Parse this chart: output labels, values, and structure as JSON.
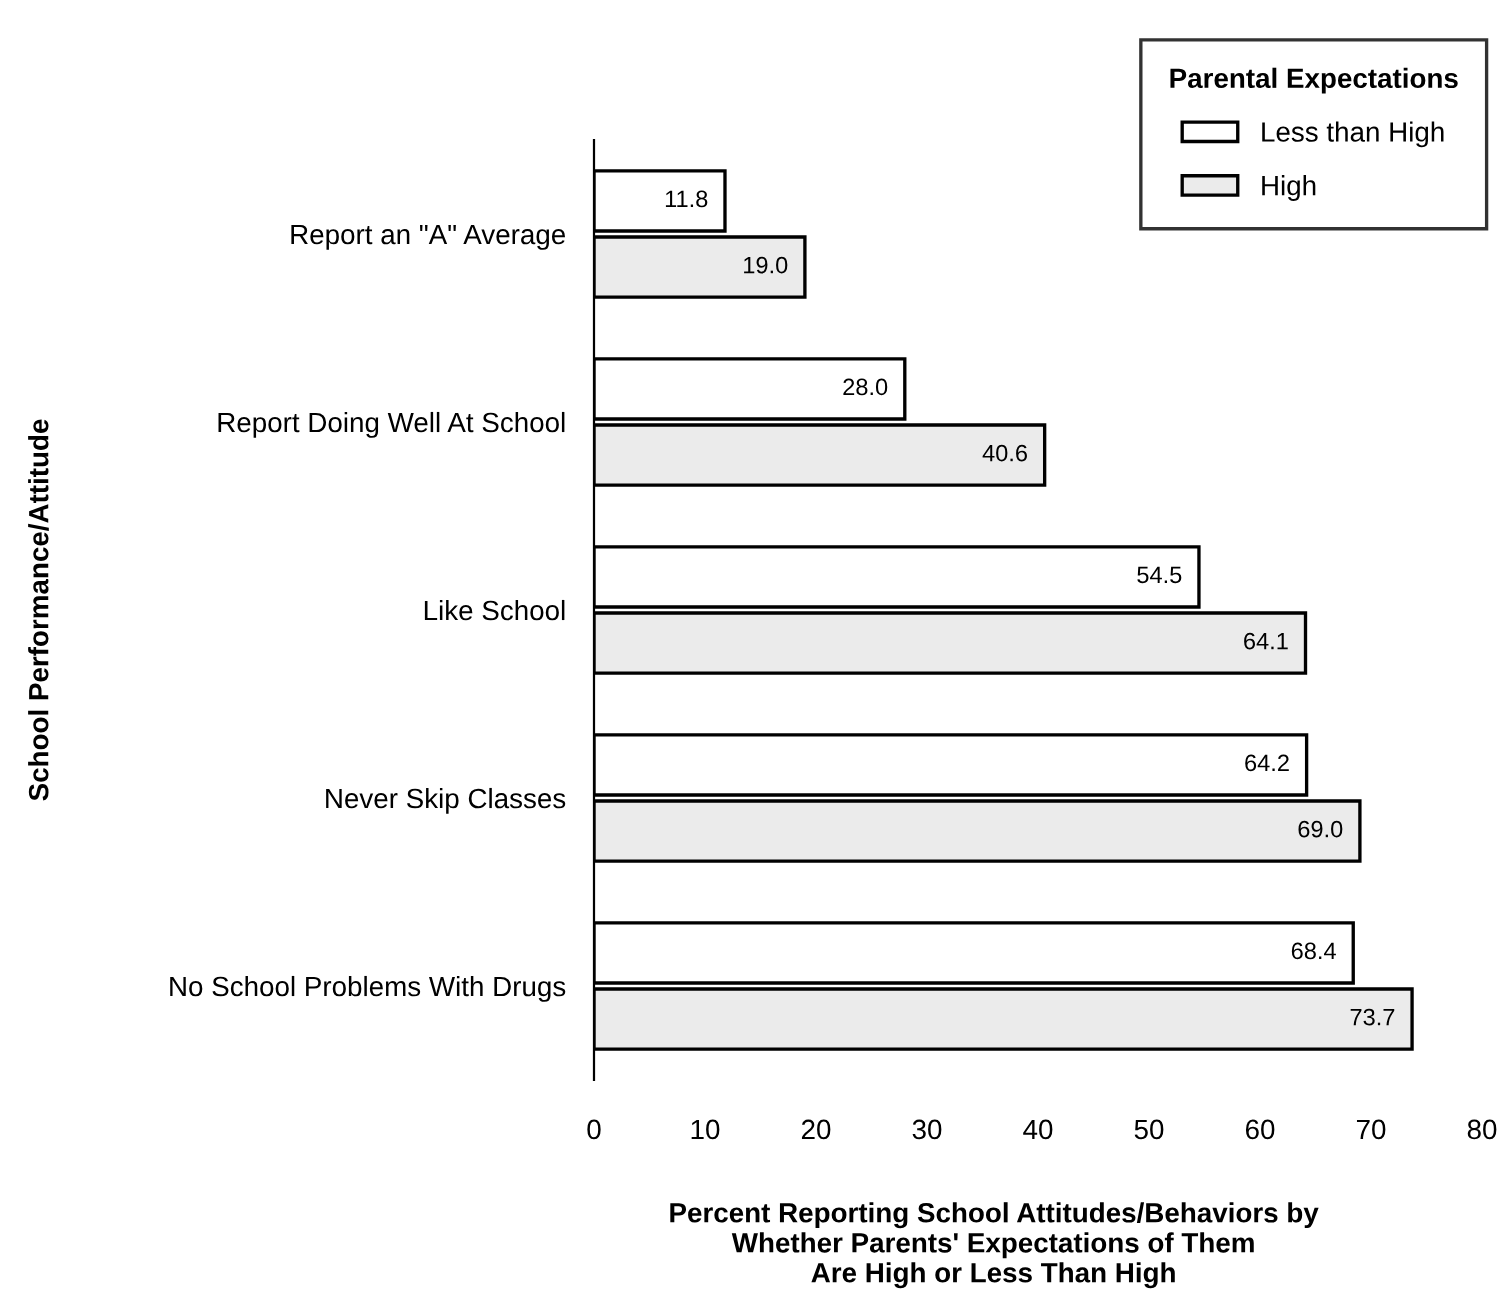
{
  "chart_data": {
    "type": "bar",
    "orientation": "horizontal",
    "title": null,
    "xlabel": "Percent Reporting School Attitudes/Behaviors by\nWhether Parents' Expectations of Them\nAre High or Less Than High",
    "ylabel": "School Performance/Attitude",
    "legend_title": "Parental Expectations",
    "categories": [
      "Report an \"A\" Average",
      "Report Doing Well At School",
      "Like School",
      "Never Skip Classes",
      "No School Problems With Drugs"
    ],
    "series": [
      {
        "name": "Less than High",
        "color": "#ffffff",
        "values": [
          11.8,
          28.0,
          54.5,
          64.2,
          68.4
        ],
        "value_labels": [
          "11.8",
          "28.0",
          "54.5",
          "64.2",
          "68.4"
        ]
      },
      {
        "name": "High",
        "color": "#ebebeb",
        "values": [
          19.0,
          40.6,
          64.1,
          69.0,
          73.7
        ],
        "value_labels": [
          "19.0",
          "40.6",
          "64.1",
          "69.0",
          "73.7"
        ]
      }
    ],
    "xlim": [
      0,
      80
    ],
    "xticks": [
      0,
      10,
      20,
      30,
      40,
      50,
      60,
      70,
      80
    ],
    "legend": "top right",
    "grid": false
  }
}
